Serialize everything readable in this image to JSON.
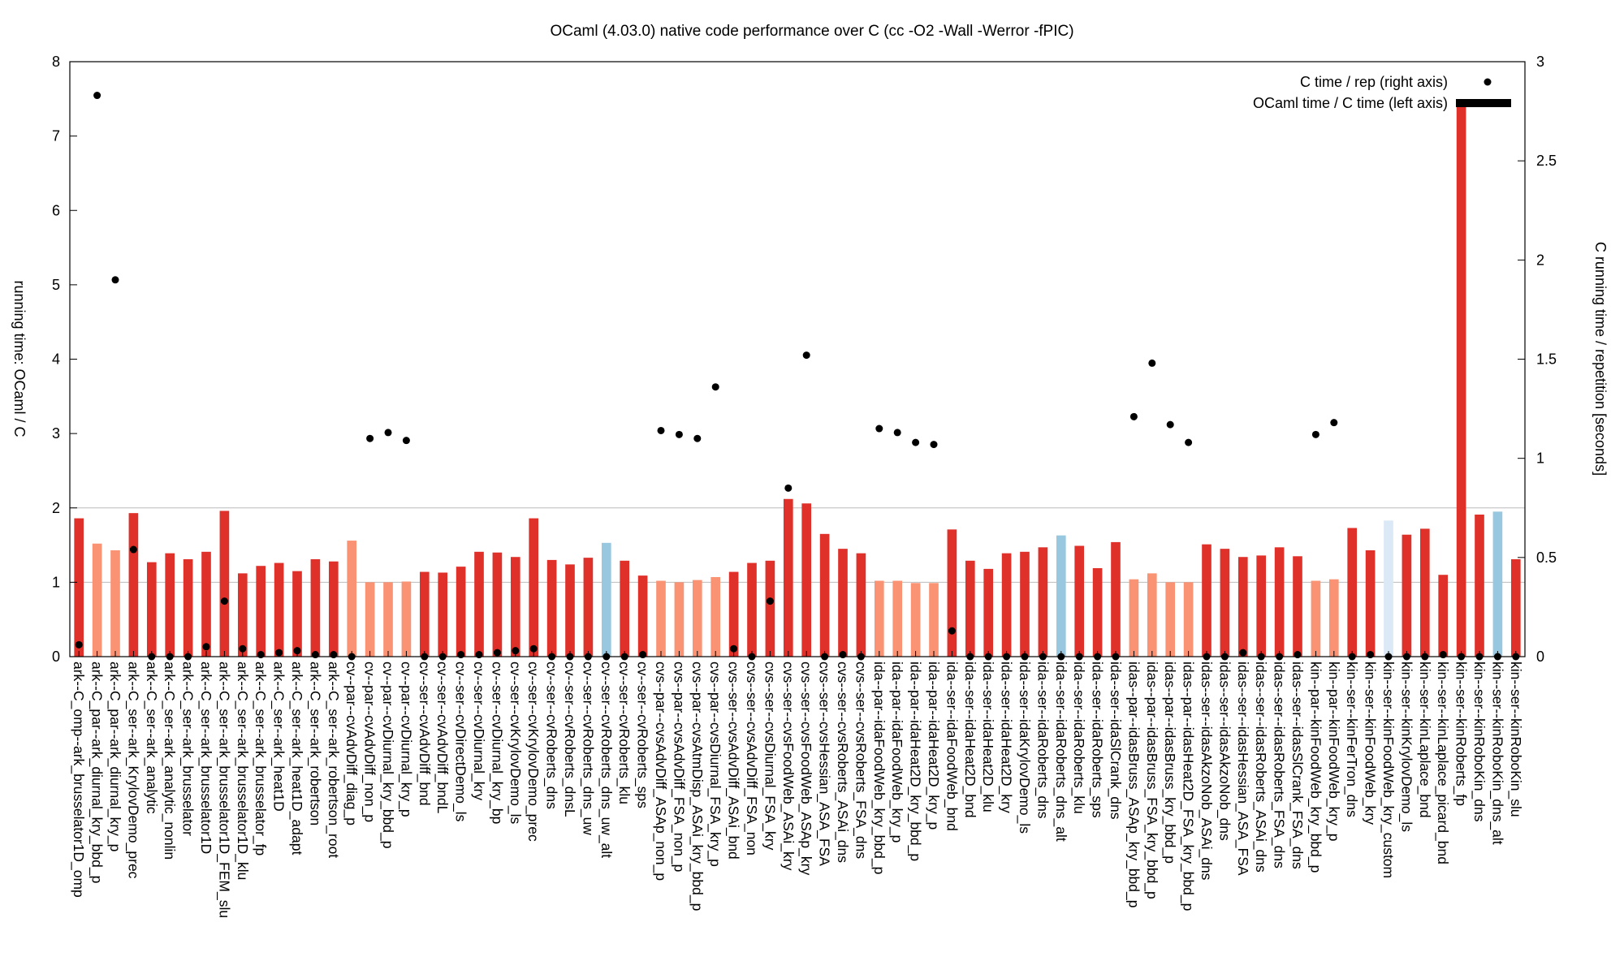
{
  "chart_data": {
    "type": "bar",
    "title": "OCaml (4.03.0) native code performance over C (cc -O2 -Wall -Werror -fPIC)",
    "ylabel_left": "running time: OCaml / C",
    "ylabel_right": "C running time / repetition [seconds]",
    "ylim_left": [
      0,
      8
    ],
    "ylim_right": [
      0,
      3
    ],
    "yticks_left": [
      "0",
      "1",
      "2",
      "3",
      "4",
      "5",
      "6",
      "7",
      "8"
    ],
    "yticks_right": [
      "0",
      "0.5",
      "1",
      "1.5",
      "2",
      "2.5",
      "3"
    ],
    "reference_lines_left": [
      1,
      2
    ],
    "legend_position": "top-right",
    "legend": {
      "points": "C time / rep (right axis)",
      "bars": "OCaml time / C time (left axis)"
    },
    "colors": {
      "red": "#e0302a",
      "salmon": "#fa9373",
      "blue": "#98c8e0",
      "lightblue": "#dbe9f6",
      "point": "#000000"
    },
    "categories": [
      "ark--C_omp--ark_brusselator1D_omp",
      "ark--C_par--ark_diurnal_kry_bbd_p",
      "ark--C_par--ark_diurnal_kry_p",
      "ark--C_ser--ark_KrylovDemo_prec",
      "ark--C_ser--ark_analytic",
      "ark--C_ser--ark_analytic_nonlin",
      "ark--C_ser--ark_brusselator",
      "ark--C_ser--ark_brusselator1D",
      "ark--C_ser--ark_brusselator1D_FEM_slu",
      "ark--C_ser--ark_brusselator1D_klu",
      "ark--C_ser--ark_brusselator_fp",
      "ark--C_ser--ark_heat1D",
      "ark--C_ser--ark_heat1D_adapt",
      "ark--C_ser--ark_robertson",
      "ark--C_ser--ark_robertson_root",
      "cv--par--cvAdvDiff_diag_p",
      "cv--par--cvAdvDiff_non_p",
      "cv--par--cvDiurnal_kry_bbd_p",
      "cv--par--cvDiurnal_kry_p",
      "cv--ser--cvAdvDiff_bnd",
      "cv--ser--cvAdvDiff_bndL",
      "cv--ser--cvDirectDemo_ls",
      "cv--ser--cvDiurnal_kry",
      "cv--ser--cvDiurnal_kry_bp",
      "cv--ser--cvKrylovDemo_ls",
      "cv--ser--cvKrylovDemo_prec",
      "cv--ser--cvRoberts_dns",
      "cv--ser--cvRoberts_dnsL",
      "cv--ser--cvRoberts_dns_uw",
      "cv--ser--cvRoberts_dns_uw_alt",
      "cv--ser--cvRoberts_klu",
      "cv--ser--cvRoberts_sps",
      "cvs--par--cvsAdvDiff_ASAp_non_p",
      "cvs--par--cvsAdvDiff_FSA_non_p",
      "cvs--par--cvsAtmDisp_ASAi_kry_bbd_p",
      "cvs--par--cvsDiurnal_FSA_kry_p",
      "cvs--ser--cvsAdvDiff_ASAi_bnd",
      "cvs--ser--cvsAdvDiff_FSA_non",
      "cvs--ser--cvsDiurnal_FSA_kry",
      "cvs--ser--cvsFoodWeb_ASAi_kry",
      "cvs--ser--cvsFoodWeb_ASAp_kry",
      "cvs--ser--cvsHessian_ASA_FSA",
      "cvs--ser--cvsRoberts_ASAi_dns",
      "cvs--ser--cvsRoberts_FSA_dns",
      "ida--par--idaFoodWeb_kry_bbd_p",
      "ida--par--idaFoodWeb_kry_p",
      "ida--par--idaHeat2D_kry_bbd_p",
      "ida--par--idaHeat2D_kry_p",
      "ida--ser--idaFoodWeb_bnd",
      "ida--ser--idaHeat2D_bnd",
      "ida--ser--idaHeat2D_klu",
      "ida--ser--idaHeat2D_kry",
      "ida--ser--idaKrylovDemo_ls",
      "ida--ser--idaRoberts_dns",
      "ida--ser--idaRoberts_dns_alt",
      "ida--ser--idaRoberts_klu",
      "ida--ser--idaRoberts_sps",
      "ida--ser--idaSlCrank_dns",
      "idas--par--idasBruss_ASAp_kry_bbd_p",
      "idas--par--idasBruss_FSA_kry_bbd_p",
      "idas--par--idasBruss_kry_bbd_p",
      "idas--par--idasHeat2D_FSA_kry_bbd_p",
      "idas--ser--idasAkzoNob_ASAi_dns",
      "idas--ser--idasAkzoNob_dns",
      "idas--ser--idasHessian_ASA_FSA",
      "idas--ser--idasRoberts_ASAi_dns",
      "idas--ser--idasRoberts_FSA_dns",
      "idas--ser--idasSlCrank_FSA_dns",
      "kin--par--kinFoodWeb_kry_bbd_p",
      "kin--par--kinFoodWeb_kry_p",
      "kin--ser--kinFerTron_dns",
      "kin--ser--kinFoodWeb_kry",
      "kin--ser--kinFoodWeb_kry_custom",
      "kin--ser--kinKrylovDemo_ls",
      "kin--ser--kinLaplace_bnd",
      "kin--ser--kinLaplace_picard_bnd",
      "kin--ser--kinRoberts_fp",
      "kin--ser--kinRoboKin_dns",
      "kin--ser--kinRoboKin_dns_alt",
      "kin--ser--kinRoboKin_slu"
    ],
    "series": [
      {
        "name": "OCaml time / C time (left axis)",
        "axis": "left",
        "values": [
          1.86,
          1.52,
          1.43,
          1.93,
          1.27,
          1.39,
          1.31,
          1.41,
          1.96,
          1.12,
          1.22,
          1.26,
          1.15,
          1.31,
          1.28,
          1.56,
          1.0,
          1.0,
          1.01,
          1.14,
          1.13,
          1.21,
          1.41,
          1.4,
          1.34,
          1.86,
          1.3,
          1.24,
          1.33,
          1.53,
          1.29,
          1.09,
          1.02,
          1.0,
          1.03,
          1.07,
          1.14,
          1.26,
          1.29,
          2.12,
          2.06,
          1.65,
          1.45,
          1.39,
          1.02,
          1.02,
          0.99,
          0.99,
          1.71,
          1.29,
          1.18,
          1.39,
          1.41,
          1.47,
          1.63,
          1.49,
          1.19,
          1.54,
          1.04,
          1.12,
          1.0,
          1.0,
          1.51,
          1.45,
          1.34,
          1.36,
          1.47,
          1.35,
          1.02,
          1.04,
          1.73,
          1.43,
          1.83,
          1.64,
          1.72,
          1.1,
          7.42,
          1.91,
          1.95,
          1.31
        ],
        "color_group": [
          "red",
          "salmon",
          "salmon",
          "red",
          "red",
          "red",
          "red",
          "red",
          "red",
          "red",
          "red",
          "red",
          "red",
          "red",
          "red",
          "salmon",
          "salmon",
          "salmon",
          "salmon",
          "red",
          "red",
          "red",
          "red",
          "red",
          "red",
          "red",
          "red",
          "red",
          "red",
          "blue",
          "red",
          "red",
          "salmon",
          "salmon",
          "salmon",
          "salmon",
          "red",
          "red",
          "red",
          "red",
          "red",
          "red",
          "red",
          "red",
          "salmon",
          "salmon",
          "salmon",
          "salmon",
          "red",
          "red",
          "red",
          "red",
          "red",
          "red",
          "blue",
          "red",
          "red",
          "red",
          "salmon",
          "salmon",
          "salmon",
          "salmon",
          "red",
          "red",
          "red",
          "red",
          "red",
          "red",
          "salmon",
          "salmon",
          "red",
          "red",
          "lightblue",
          "red",
          "red",
          "red",
          "red",
          "red",
          "blue",
          "red"
        ]
      },
      {
        "name": "C time / rep (right axis)",
        "axis": "right",
        "values": [
          0.06,
          2.83,
          1.9,
          0.54,
          0.0,
          0.0,
          0.0,
          0.05,
          0.28,
          0.04,
          0.01,
          0.02,
          0.03,
          0.01,
          0.01,
          0.0,
          1.1,
          1.13,
          1.09,
          0.0,
          0.0,
          0.01,
          0.01,
          0.02,
          0.03,
          0.04,
          0.0,
          0.0,
          0.0,
          0.0,
          0.0,
          0.01,
          1.14,
          1.12,
          1.1,
          1.36,
          0.04,
          0.0,
          0.28,
          0.85,
          1.52,
          0.0,
          0.01,
          0.0,
          1.15,
          1.13,
          1.08,
          1.07,
          0.13,
          0.0,
          0.0,
          0.0,
          0.0,
          0.0,
          0.0,
          0.0,
          0.0,
          0.0,
          1.21,
          1.48,
          1.17,
          1.08,
          0.0,
          0.0,
          0.02,
          0.0,
          0.0,
          0.01,
          1.12,
          1.18,
          0.0,
          0.01,
          0.0,
          0.0,
          0.0,
          0.01,
          0.0,
          0.0,
          0.0,
          0.0
        ]
      }
    ]
  }
}
